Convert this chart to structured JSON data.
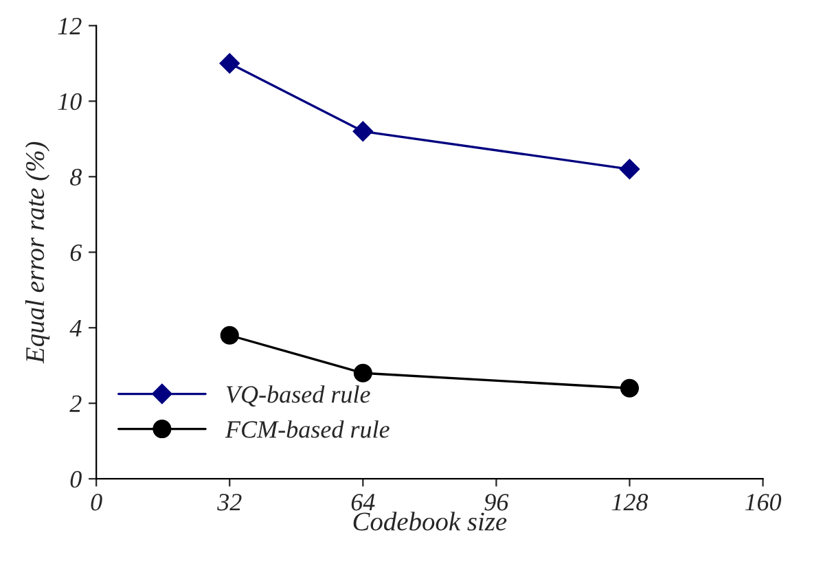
{
  "chart_data": {
    "type": "line",
    "xlabel": "Codebook size",
    "ylabel": "Equal error rate (%)",
    "x": [
      32,
      64,
      128
    ],
    "series": [
      {
        "name": "VQ-based rule",
        "color": "#000080",
        "values": [
          11.0,
          9.2,
          8.2
        ],
        "marker": "diamond"
      },
      {
        "name": "FCM-based rule",
        "color": "#000000",
        "values": [
          3.8,
          2.8,
          2.4
        ],
        "marker": "circle"
      }
    ],
    "xlim": [
      0,
      160
    ],
    "xticks": [
      0,
      32,
      64,
      96,
      128,
      160
    ],
    "ylim": [
      0,
      12
    ],
    "yticks": [
      0,
      2,
      4,
      6,
      8,
      10,
      12
    ],
    "grid": false,
    "legend": "bottom left",
    "line_style": "solid"
  }
}
